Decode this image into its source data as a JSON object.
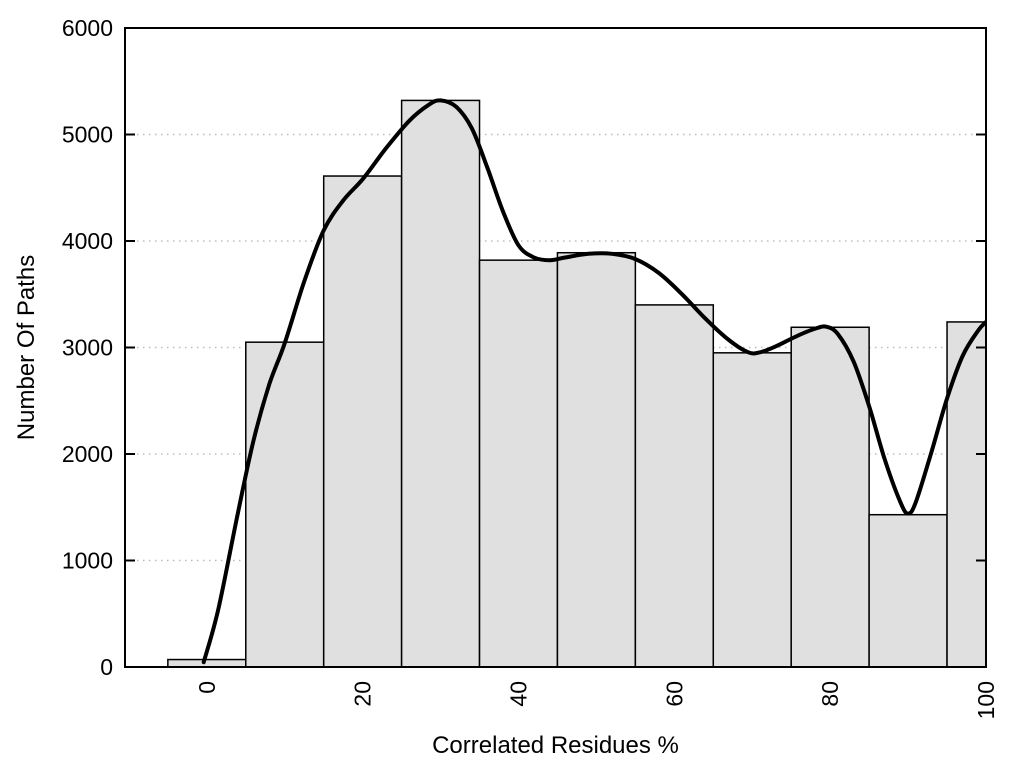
{
  "chart_data": {
    "type": "bar",
    "subtype": "histogram-with-smoothed-curve",
    "title": "",
    "xlabel": "Correlated Residues %",
    "ylabel": "Number Of Paths",
    "bin_centers": [
      0,
      10,
      20,
      30,
      40,
      50,
      60,
      70,
      80,
      90,
      100
    ],
    "bin_width": 10,
    "values": [
      70,
      3050,
      4610,
      5320,
      3820,
      3890,
      3400,
      2950,
      3190,
      1430,
      3240
    ],
    "x_ticks": [
      "0",
      "20",
      "40",
      "60",
      "80",
      "100"
    ],
    "x_tick_values": [
      0,
      20,
      40,
      60,
      80,
      100
    ],
    "y_ticks": [
      "0",
      "1000",
      "2000",
      "3000",
      "4000",
      "5000",
      "6000"
    ],
    "y_tick_values": [
      0,
      1000,
      2000,
      3000,
      4000,
      5000,
      6000
    ],
    "xlim": [
      -10.5,
      100
    ],
    "ylim": [
      0,
      6000
    ],
    "grid": "horizontal-dotted",
    "legend": "none",
    "x_tick_label_rotation": -90,
    "colors": {
      "background": "#ffffff",
      "bar_fill": "#e0e0e0",
      "bar_stroke": "#000000",
      "curve": "#000000",
      "grid": "#bdbdbd",
      "axis": "#000000"
    },
    "curve": {
      "name": "smoothed-density-curve",
      "points": [
        [
          -0.4,
          45
        ],
        [
          1.5,
          550
        ],
        [
          4,
          1450
        ],
        [
          6,
          2130
        ],
        [
          8,
          2650
        ],
        [
          10,
          3040
        ],
        [
          12.5,
          3620
        ],
        [
          15,
          4100
        ],
        [
          17.5,
          4380
        ],
        [
          20,
          4580
        ],
        [
          23,
          4870
        ],
        [
          26,
          5130
        ],
        [
          28.5,
          5280
        ],
        [
          30,
          5320
        ],
        [
          32,
          5260
        ],
        [
          34,
          5060
        ],
        [
          36,
          4690
        ],
        [
          38,
          4280
        ],
        [
          40,
          3960
        ],
        [
          42,
          3845
        ],
        [
          44,
          3820
        ],
        [
          46,
          3845
        ],
        [
          49,
          3880
        ],
        [
          52,
          3880
        ],
        [
          55,
          3830
        ],
        [
          58,
          3700
        ],
        [
          61,
          3500
        ],
        [
          64,
          3270
        ],
        [
          67,
          3070
        ],
        [
          69.5,
          2955
        ],
        [
          71,
          2955
        ],
        [
          73,
          3010
        ],
        [
          75.5,
          3100
        ],
        [
          78,
          3175
        ],
        [
          79.5,
          3195
        ],
        [
          81,
          3125
        ],
        [
          83,
          2870
        ],
        [
          85,
          2450
        ],
        [
          87,
          1950
        ],
        [
          89,
          1550
        ],
        [
          90,
          1440
        ],
        [
          91,
          1550
        ],
        [
          93,
          2020
        ],
        [
          95,
          2520
        ],
        [
          97,
          2920
        ],
        [
          99,
          3160
        ],
        [
          100,
          3240
        ]
      ]
    }
  }
}
